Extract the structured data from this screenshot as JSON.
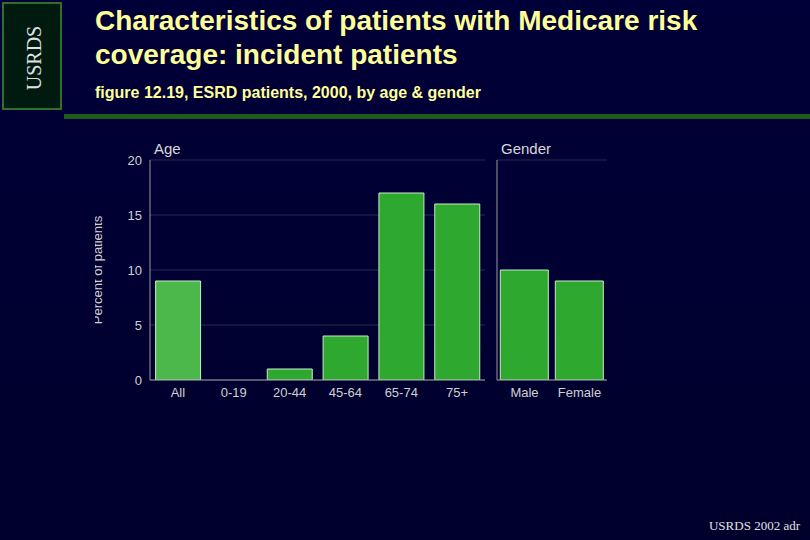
{
  "slide": {
    "side_label": "USRDS",
    "title": "Characteristics of patients with Medicare risk coverage: incident patients",
    "subtitle": "figure 12.19, ESRD patients, 2000, by age & gender",
    "source": "USRDS 2002 adr"
  },
  "chart_data": [
    {
      "type": "bar",
      "title": "Age",
      "categories": [
        "All",
        "0-19",
        "20-44",
        "45-64",
        "65-74",
        "75+"
      ],
      "values": [
        9,
        0,
        1,
        4,
        17,
        16
      ],
      "colors": [
        "#4cb84c",
        "#2ea82e",
        "#2ea82e",
        "#2ea82e",
        "#2ea82e",
        "#2ea82e"
      ],
      "ylim": [
        0,
        20
      ],
      "yticks": [
        0,
        5,
        10,
        15,
        20
      ],
      "grid": true,
      "y_label": "Percent of patients"
    },
    {
      "type": "bar",
      "title": "Gender",
      "categories": [
        "Male",
        "Female"
      ],
      "values": [
        10,
        9
      ],
      "color": "#2ea82e",
      "ylim": [
        0,
        20
      ],
      "yticks": [
        0,
        5,
        10,
        15,
        20
      ],
      "grid": true,
      "tick_labels": "x"
    }
  ]
}
